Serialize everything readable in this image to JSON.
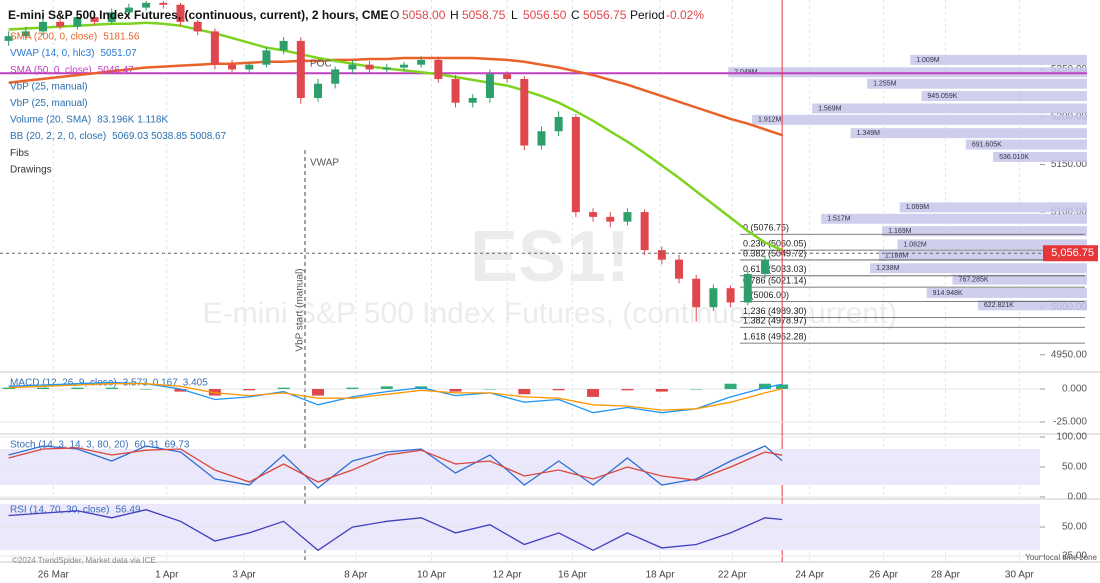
{
  "header": {
    "title": "E-mini S&P 500 Index Futures, (continuous, current), 2 hours, CME",
    "ohlc": [
      {
        "label": "O",
        "value": "5058.00"
      },
      {
        "label": "H",
        "value": "5058.75"
      },
      {
        "label": "L",
        "value": "5056.50"
      },
      {
        "label": "C",
        "value": "5056.75"
      },
      {
        "label": "Period",
        "value": "-0.02%"
      }
    ]
  },
  "watermark": {
    "symbol": "ES1!",
    "name": "E-mini S&P 500 Index Futures, (continuous, current)"
  },
  "footer": {
    "credit": "©2024 TrendSpider, Market data via ICE",
    "timezone": "Your local time zone"
  },
  "chart_data": [
    {
      "type": "candlestick",
      "x": [
        0,
        1,
        2,
        3,
        4,
        5,
        6,
        7,
        8,
        9,
        10,
        11,
        12,
        13,
        14,
        15,
        16,
        17,
        18,
        19,
        20,
        21,
        22,
        23,
        24,
        25,
        26,
        27,
        28,
        29,
        30,
        31,
        32,
        33,
        34,
        35,
        36,
        37,
        38,
        39,
        40,
        41,
        42,
        43,
        44,
        45
      ],
      "open": [
        5280,
        5285,
        5290,
        5300,
        5295,
        5305,
        5300,
        5310,
        5315,
        5320,
        5318,
        5300,
        5290,
        5255,
        5250,
        5255,
        5270,
        5280,
        5220,
        5235,
        5250,
        5255,
        5250,
        5252,
        5255,
        5260,
        5240,
        5215,
        5220,
        5245,
        5240,
        5170,
        5185,
        5200,
        5100,
        5095,
        5090,
        5100,
        5060,
        5050,
        5030,
        5000,
        5020,
        5005,
        5035,
        5058
      ],
      "high": [
        5290,
        5295,
        5306,
        5303,
        5309,
        5308,
        5314,
        5319,
        5322,
        5322,
        5320,
        5302,
        5293,
        5260,
        5258,
        5274,
        5284,
        5284,
        5240,
        5253,
        5260,
        5259,
        5256,
        5258,
        5264,
        5263,
        5244,
        5224,
        5250,
        5248,
        5243,
        5190,
        5206,
        5203,
        5104,
        5100,
        5104,
        5103,
        5064,
        5055,
        5034,
        5024,
        5023,
        5038,
        5054,
        5058.75
      ],
      "low": [
        5275,
        5281,
        5286,
        5292,
        5292,
        5297,
        5297,
        5306,
        5312,
        5314,
        5296,
        5286,
        5250,
        5245,
        5246,
        5252,
        5266,
        5214,
        5216,
        5230,
        5246,
        5246,
        5246,
        5248,
        5252,
        5236,
        5210,
        5210,
        5215,
        5236,
        5165,
        5166,
        5180,
        5095,
        5090,
        5084,
        5086,
        5055,
        5045,
        5025,
        4985,
        4996,
        5000,
        5002,
        5030,
        5056.5
      ],
      "close": [
        5285,
        5290,
        5300,
        5295,
        5305,
        5300,
        5310,
        5315,
        5320,
        5318,
        5300,
        5290,
        5255,
        5250,
        5255,
        5270,
        5280,
        5220,
        5235,
        5250,
        5255,
        5250,
        5252,
        5255,
        5260,
        5240,
        5215,
        5220,
        5245,
        5240,
        5170,
        5185,
        5200,
        5100,
        5095,
        5090,
        5100,
        5060,
        5050,
        5030,
        5000,
        5020,
        5005,
        5035,
        5050,
        5056.75
      ],
      "up_color": "#2e9e6a",
      "down_color": "#e0474c",
      "series": [
        {
          "color": "#e8622a",
          "values": [
            5236,
            5238,
            5240,
            5242,
            5244,
            5246,
            5248,
            5250,
            5252,
            5253,
            5254,
            5255,
            5256,
            5256,
            5257,
            5258,
            5258,
            5259,
            5259,
            5260,
            5260,
            5261,
            5261,
            5262,
            5262,
            5262,
            5262,
            5262,
            5261,
            5260,
            5258,
            5255,
            5252,
            5248,
            5244,
            5239,
            5234,
            5228,
            5222,
            5216,
            5210,
            5204,
            5198,
            5193,
            5187,
            5181
          ]
        },
        {
          "color": "#7ed321",
          "values": [
            5292,
            5293,
            5294,
            5295,
            5296,
            5297,
            5298,
            5298,
            5299,
            5298,
            5296,
            5292,
            5288,
            5283,
            5278,
            5273,
            5270,
            5266,
            5262,
            5259,
            5256,
            5253,
            5251,
            5249,
            5247,
            5245,
            5242,
            5239,
            5236,
            5233,
            5228,
            5222,
            5215,
            5206,
            5196,
            5185,
            5174,
            5162,
            5149,
            5136,
            5122,
            5108,
            5094,
            5080,
            5068,
            5060
          ]
        }
      ],
      "legend": [
        {
          "text": "SMA (200, 0, close)",
          "readout": "5181.56",
          "color": "#e8622a"
        },
        {
          "text": "VWAP (14, 0, hlc3)",
          "readout": "5051.07",
          "color": "#2a7ad5"
        },
        {
          "text": "SMA (50, 0, close)",
          "readout": "5046.47",
          "color": "#c040c0"
        },
        {
          "text": "VbP (25, manual)",
          "color": "#2a6fb0"
        },
        {
          "text": "VbP (25, manual)",
          "color": "#2a6fb0"
        },
        {
          "text": "Volume (20, SMA)",
          "readout": "83.196K  1.118K",
          "color": "#2a6fb0"
        },
        {
          "text": "BB (20, 2, 2, 0, close)",
          "readout": "5069.03  5038.85  5008.67",
          "color": "#2a6fb0"
        },
        {
          "text": "Fibs",
          "color": "#333333"
        },
        {
          "text": "Drawings",
          "color": "#333333"
        }
      ],
      "levels": [
        {
          "value": 5246,
          "color": "#c040c0"
        }
      ],
      "last_price": {
        "value": 5056.75,
        "label": "5,056.75",
        "color": "#e8353a"
      },
      "fib": {
        "values": [
          5076.75,
          5060.05,
          5049.72,
          5033.03,
          5021.14,
          5006.0,
          4989.3,
          4978.97,
          4962.28
        ],
        "value_labels": [
          "0 (5076.75)",
          "0.236 (5060.05)",
          "0.382 (5049.72)",
          "0.618 (5033.03)",
          "0.786 (5021.14)",
          "1 (5006.00)",
          "1.236 (4989.30)",
          "1.382 (4978.97)",
          "1.618 (4962.28)"
        ]
      },
      "volume_profile": {
        "color": "#c7c7ea",
        "xlim": [
          0,
          2300000
        ],
        "prices": [
          5260,
          5247,
          5235,
          5222,
          5209,
          5197,
          5183,
          5171,
          5158,
          5105,
          5093,
          5080,
          5066,
          5054,
          5041,
          5029,
          5015,
          5002
        ],
        "values": [
          1009000,
          2048000,
          1255000,
          945059,
          1569000,
          1912000,
          1349000,
          691605,
          536010,
          1069000,
          1517000,
          1169000,
          1082000,
          1188000,
          1238000,
          767285,
          914948,
          622821
        ],
        "value_labels": [
          "1.009M",
          "2.048M",
          "1.255M",
          "945.059K",
          "1.569M",
          "1.912M",
          "1.349M",
          "691.605K",
          "536.010K",
          "1.069M",
          "1.517M",
          "1.169M",
          "1.082M",
          "1.188M",
          "1.238M",
          "767.285K",
          "914.948K",
          "622.821K"
        ]
      },
      "annotations": [
        "POC",
        "VWAP",
        "VbP start (manual)"
      ],
      "xlim": [
        -0.5,
        60
      ],
      "xticks": [
        {
          "value": 2.6,
          "label": "26 Mar"
        },
        {
          "value": 9.2,
          "label": "1 Apr"
        },
        {
          "value": 13.7,
          "label": "3 Apr"
        },
        {
          "value": 20.2,
          "label": "8 Apr"
        },
        {
          "value": 24.6,
          "label": "10 Apr"
        },
        {
          "value": 29,
          "label": "12 Apr"
        },
        {
          "value": 32.8,
          "label": "16 Apr"
        },
        {
          "value": 37.9,
          "label": "18 Apr"
        },
        {
          "value": 42.1,
          "label": "22 Apr"
        },
        {
          "value": 46.6,
          "label": "24 Apr"
        },
        {
          "value": 50.9,
          "label": "26 Apr"
        },
        {
          "value": 54.5,
          "label": "28 Apr"
        },
        {
          "value": 58.8,
          "label": "30 Apr"
        }
      ],
      "grid": true,
      "ylim": [
        4934,
        5323
      ],
      "yticks": [
        {
          "value": 5250,
          "label": "5250.00"
        },
        {
          "value": 5200,
          "label": "5200.00"
        },
        {
          "value": 5150,
          "label": "5150.00"
        },
        {
          "value": 5100,
          "label": "5100.00"
        },
        {
          "value": 5000,
          "label": "5000.00"
        },
        {
          "value": 4950,
          "label": "4950.00"
        }
      ]
    },
    {
      "type": "line",
      "label": "MACD (12, 26, 9, close)",
      "readouts": [
        "3.573",
        "0.167",
        "3.405"
      ],
      "x": [
        0,
        2,
        4,
        6,
        8,
        10,
        12,
        14,
        16,
        18,
        20,
        22,
        24,
        26,
        28,
        30,
        32,
        34,
        36,
        38,
        40,
        42,
        44,
        45
      ],
      "series": [
        {
          "type": "bar",
          "up_color": "#2eae7a",
          "down_color": "#e0474c",
          "values": [
            1,
            1,
            1,
            1,
            0,
            -2,
            -5,
            -1,
            1,
            -5,
            1,
            2,
            2,
            -2,
            0,
            -4,
            -1,
            -6,
            -1,
            -2,
            0,
            4,
            4,
            3.405
          ]
        },
        {
          "type": "line",
          "color": "#2196f3",
          "values": [
            2,
            3,
            4,
            5,
            4,
            0,
            -8,
            -6,
            -2,
            -12,
            -6,
            -2,
            1,
            -5,
            -3,
            -10,
            -8,
            -18,
            -14,
            -18,
            -15,
            -6,
            1,
            3.573
          ]
        },
        {
          "type": "line",
          "color": "#ff9800",
          "values": [
            1,
            2,
            3,
            4,
            4,
            2,
            -3,
            -5,
            -3,
            -7,
            -7,
            -4,
            -1,
            -3,
            -3,
            -6,
            -7,
            -12,
            -13,
            -16,
            -15,
            -10,
            -3,
            0.167
          ]
        }
      ],
      "xlim": [
        -0.5,
        60
      ],
      "ylim": [
        -32.6,
        10.6
      ],
      "yticks": [
        {
          "value": 0,
          "label": "0.000"
        },
        {
          "value": -25,
          "label": "-25.000"
        }
      ]
    },
    {
      "type": "line",
      "label": "Stoch (14, 3, 14, 3, 80, 20)",
      "readouts": [
        "60.31",
        "69.73"
      ],
      "x": [
        0,
        2,
        4,
        6,
        8,
        10,
        12,
        14,
        16,
        18,
        20,
        22,
        24,
        26,
        28,
        30,
        32,
        34,
        36,
        38,
        40,
        42,
        44,
        45
      ],
      "series": [
        {
          "type": "line",
          "color": "#2f6fd6",
          "values": [
            70,
            85,
            80,
            60,
            85,
            75,
            30,
            20,
            70,
            15,
            60,
            75,
            80,
            40,
            70,
            20,
            60,
            20,
            65,
            20,
            30,
            60,
            85,
            60.31
          ]
        },
        {
          "type": "line",
          "color": "#d9463c",
          "values": [
            65,
            80,
            82,
            70,
            78,
            80,
            45,
            25,
            55,
            25,
            45,
            70,
            78,
            55,
            60,
            35,
            45,
            30,
            50,
            35,
            28,
            50,
            75,
            69.73
          ]
        }
      ],
      "band": [
        20,
        80
      ],
      "band_color": "#ece8fb",
      "xlim": [
        -0.5,
        60
      ],
      "ylim": [
        0,
        100
      ],
      "yticks": [
        {
          "value": 100,
          "label": "100.00"
        },
        {
          "value": 50,
          "label": "50.00"
        },
        {
          "value": 0,
          "label": "0.00"
        }
      ]
    },
    {
      "type": "line",
      "label": "RSI (14, 70, 30, close)",
      "readouts": [
        "56.49"
      ],
      "x": [
        0,
        2,
        4,
        6,
        8,
        10,
        12,
        14,
        16,
        18,
        20,
        22,
        24,
        26,
        28,
        30,
        32,
        34,
        36,
        38,
        40,
        42,
        44,
        45
      ],
      "series": [
        {
          "type": "line",
          "color": "#3f3fbf",
          "values": [
            60,
            62,
            64,
            58,
            65,
            55,
            38,
            45,
            55,
            30,
            50,
            55,
            58,
            45,
            52,
            35,
            45,
            30,
            45,
            32,
            35,
            45,
            58,
            56.49
          ]
        }
      ],
      "band": [
        30,
        70
      ],
      "band_color": "#ece8fb",
      "xlim": [
        -0.5,
        60
      ],
      "ylim": [
        21.6,
        71.6
      ],
      "yticks": [
        {
          "value": 50,
          "label": "50.00"
        },
        {
          "value": 25,
          "label": "25.00"
        }
      ]
    }
  ]
}
